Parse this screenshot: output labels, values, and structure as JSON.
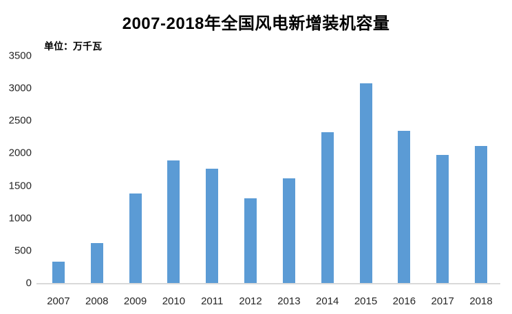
{
  "chart_data": {
    "type": "bar",
    "title": "2007-2018年全国风电新增装机容量",
    "unit_label": "单位：万千瓦",
    "categories": [
      "2007",
      "2008",
      "2009",
      "2010",
      "2011",
      "2012",
      "2013",
      "2014",
      "2015",
      "2016",
      "2017",
      "2018"
    ],
    "values": [
      330,
      620,
      1380,
      1890,
      1760,
      1300,
      1610,
      2320,
      3075,
      2340,
      1970,
      2110
    ],
    "xlabel": "",
    "ylabel": "",
    "ylim": [
      0,
      3500
    ],
    "yticks": [
      0,
      500,
      1000,
      1500,
      2000,
      2500,
      3000,
      3500
    ],
    "grid": false,
    "legend_position": "none",
    "bar_color": "#5b9bd5",
    "axis_line_color": "#d9d9d9",
    "text_color": "#262626",
    "title_color": "#000000"
  }
}
